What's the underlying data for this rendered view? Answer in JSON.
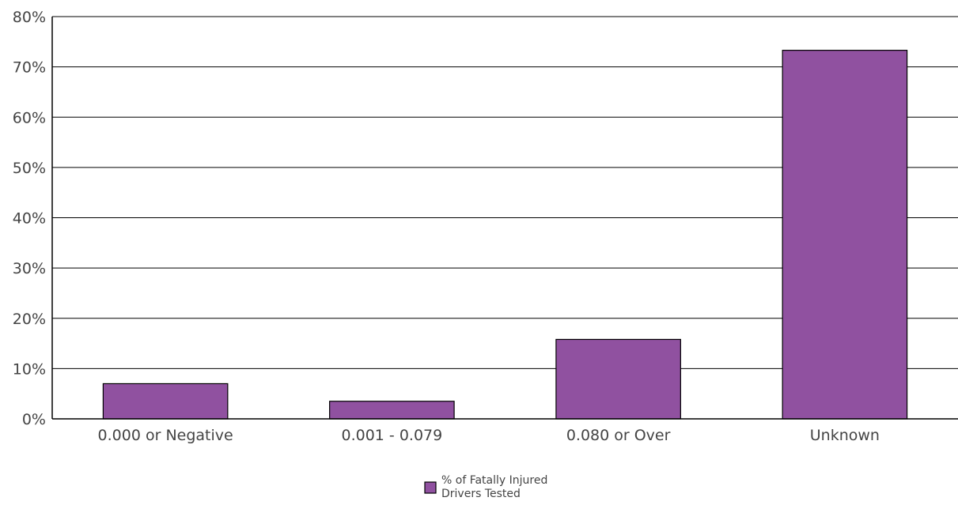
{
  "chart_data": {
    "type": "bar",
    "title": "",
    "xlabel": "",
    "ylabel": "",
    "categories": [
      "0.000 or Negative",
      "0.001 - 0.079",
      "0.080 or Over",
      "Unknown"
    ],
    "series": [
      {
        "name": "% of Fatally Injured Drivers Tested",
        "legend_lines": [
          "% of Fatally Injured",
          "Drivers Tested"
        ],
        "values": [
          7,
          3.5,
          15.8,
          73.3
        ],
        "color": "#9051A0"
      }
    ],
    "ylim": [
      0,
      80
    ],
    "y_ticks": [
      0,
      10,
      20,
      30,
      40,
      50,
      60,
      70,
      80
    ],
    "y_tick_labels": [
      "0%",
      "10%",
      "20%",
      "30%",
      "40%",
      "50%",
      "60%",
      "70%",
      "80%"
    ],
    "grid": true,
    "legend_position": "bottom-center"
  }
}
